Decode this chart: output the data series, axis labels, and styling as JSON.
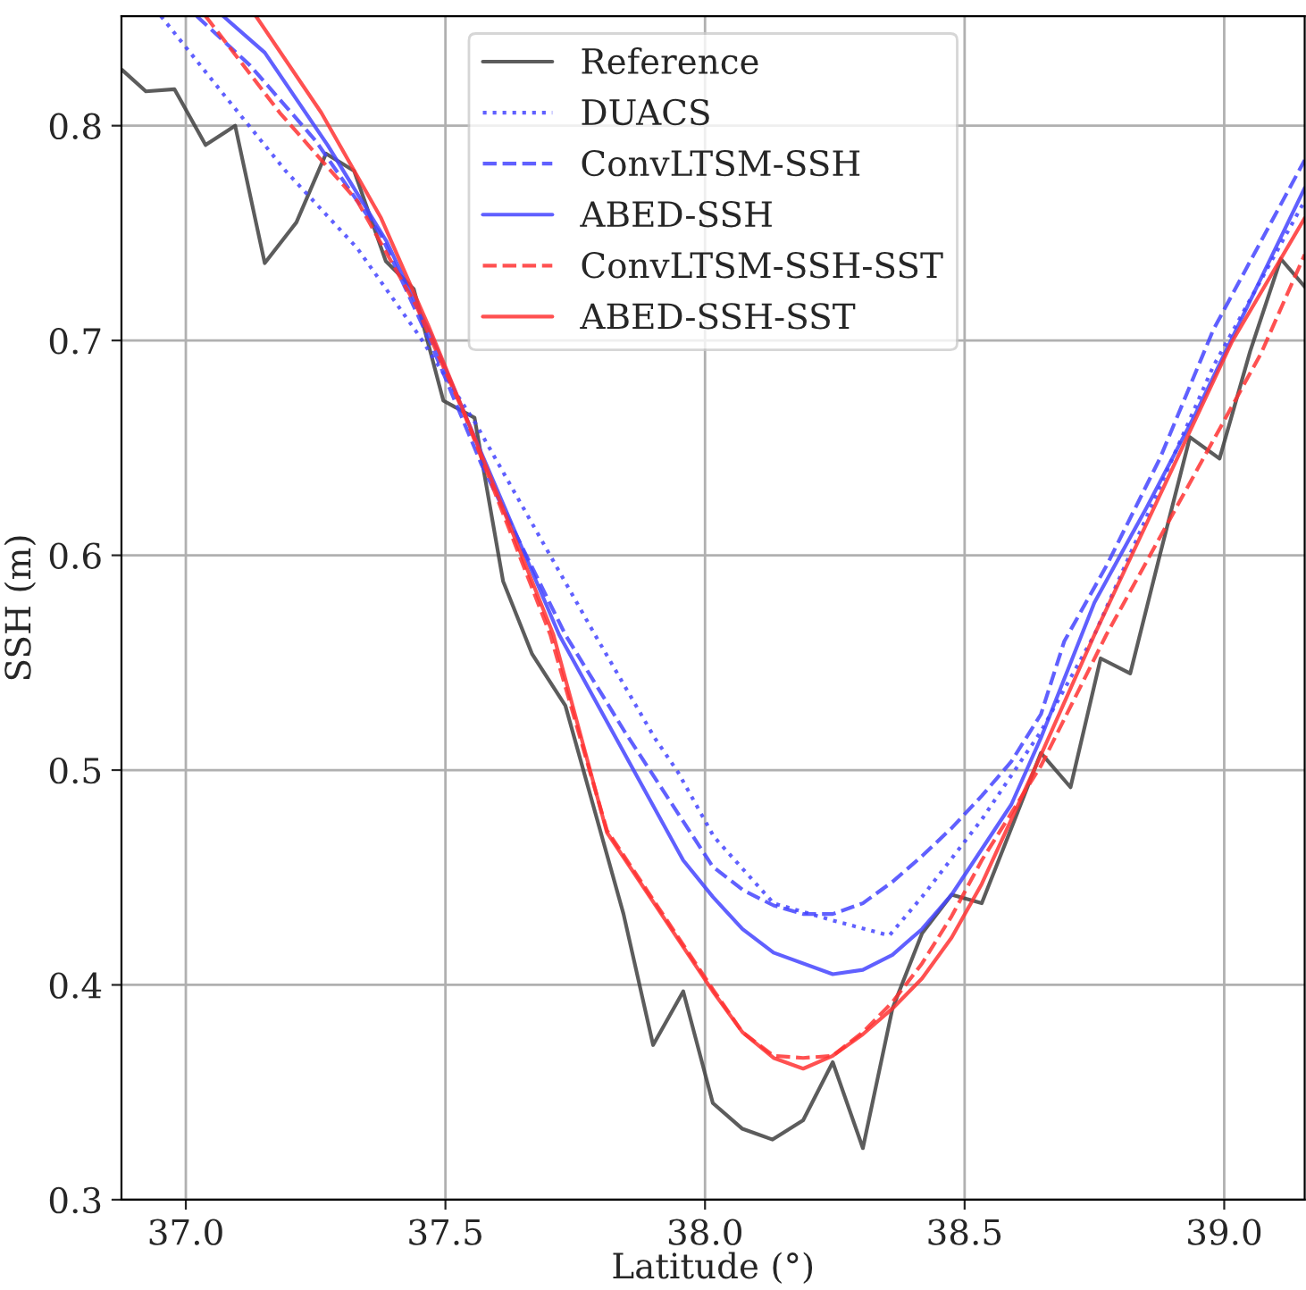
{
  "chart_data": {
    "type": "line",
    "xlabel": "Latitude (°)",
    "ylabel": "SSH (m)",
    "xlim": [
      36.876,
      39.155
    ],
    "ylim": [
      0.3,
      0.851
    ],
    "xticks": [
      {
        "value": 37,
        "label": "37.0"
      },
      {
        "value": 37.5,
        "label": "37.5"
      },
      {
        "value": 38,
        "label": "38.0"
      },
      {
        "value": 38.5,
        "label": "38.5"
      },
      {
        "value": 39,
        "label": "39.0"
      }
    ],
    "yticks": [
      {
        "value": 0.3,
        "label": "0.3"
      },
      {
        "value": 0.4,
        "label": "0.4"
      },
      {
        "value": 0.5,
        "label": "0.5"
      },
      {
        "value": 0.6,
        "label": "0.6"
      },
      {
        "value": 0.7,
        "label": "0.7"
      },
      {
        "value": 0.8,
        "label": "0.8"
      }
    ],
    "grid": true,
    "legend": "top",
    "marker": "none",
    "series": [
      {
        "name": "Reference",
        "color": "#404040",
        "line_style": "solid",
        "x": [
          36.877,
          36.923,
          36.978,
          37.038,
          37.095,
          37.152,
          37.213,
          37.27,
          37.324,
          37.385,
          37.439,
          37.496,
          37.556,
          37.611,
          37.667,
          37.731,
          37.843,
          37.9,
          37.958,
          38.015,
          38.072,
          38.13,
          38.189,
          38.246,
          38.304,
          38.361,
          38.418,
          38.475,
          38.533,
          38.59,
          38.647,
          38.704,
          38.762,
          38.819,
          38.876,
          38.934,
          38.991,
          39.05,
          39.109,
          39.155
        ],
        "values": [
          0.826,
          0.816,
          0.817,
          0.791,
          0.8,
          0.736,
          0.755,
          0.787,
          0.779,
          0.737,
          0.724,
          0.672,
          0.664,
          0.588,
          0.554,
          0.53,
          0.433,
          0.372,
          0.397,
          0.345,
          0.333,
          0.328,
          0.337,
          0.364,
          0.324,
          0.389,
          0.424,
          0.442,
          0.438,
          0.473,
          0.508,
          0.492,
          0.552,
          0.545,
          0.6,
          0.655,
          0.645,
          0.695,
          0.738,
          0.725
        ]
      },
      {
        "name": "DUACS",
        "color": "#4444ff",
        "line_style": "dotted",
        "x": [
          36.952,
          37.078,
          37.192,
          37.33,
          37.45,
          37.559,
          37.788,
          37.903,
          37.948,
          38.017,
          38.132,
          38.246,
          38.355,
          38.418,
          38.533,
          38.647,
          38.75,
          38.979,
          39.155
        ],
        "values": [
          0.851,
          0.813,
          0.779,
          0.743,
          0.702,
          0.661,
          0.563,
          0.515,
          0.499,
          0.469,
          0.438,
          0.43,
          0.423,
          0.441,
          0.477,
          0.518,
          0.563,
          0.688,
          0.765
        ]
      },
      {
        "name": "ConvLTSM-SSH",
        "color": "#4444ff",
        "line_style": "dashed",
        "x": [
          37.021,
          37.124,
          37.25,
          37.376,
          37.473,
          37.57,
          37.731,
          37.845,
          38.015,
          38.074,
          38.132,
          38.189,
          38.246,
          38.304,
          38.361,
          38.418,
          38.475,
          38.533,
          38.59,
          38.647,
          38.692,
          38.773,
          38.876,
          38.979,
          39.155
        ],
        "values": [
          0.851,
          0.828,
          0.793,
          0.749,
          0.698,
          0.642,
          0.563,
          0.518,
          0.455,
          0.444,
          0.437,
          0.433,
          0.433,
          0.438,
          0.448,
          0.46,
          0.473,
          0.488,
          0.504,
          0.526,
          0.56,
          0.595,
          0.645,
          0.705,
          0.784
        ]
      },
      {
        "name": "ABED-SSH",
        "color": "#4444ff",
        "line_style": "solid",
        "x": [
          37.072,
          37.152,
          37.273,
          37.387,
          37.473,
          37.565,
          37.719,
          37.958,
          38.015,
          38.072,
          38.132,
          38.246,
          38.304,
          38.361,
          38.418,
          38.475,
          38.59,
          38.647,
          38.75,
          38.85,
          38.945,
          39.155
        ],
        "values": [
          0.851,
          0.834,
          0.791,
          0.746,
          0.702,
          0.65,
          0.563,
          0.458,
          0.441,
          0.426,
          0.415,
          0.405,
          0.407,
          0.414,
          0.426,
          0.442,
          0.484,
          0.515,
          0.578,
          0.622,
          0.666,
          0.771
        ]
      },
      {
        "name": "ConvLTSM-SSH-SST",
        "color": "#ff3333",
        "line_style": "dashed",
        "x": [
          37.038,
          37.181,
          37.33,
          37.444,
          37.536,
          37.702,
          37.811,
          38.015,
          38.072,
          38.132,
          38.189,
          38.246,
          38.304,
          38.361,
          38.418,
          38.475,
          38.533,
          38.647,
          38.773,
          39.071,
          39.155
        ],
        "values": [
          0.851,
          0.806,
          0.765,
          0.716,
          0.666,
          0.563,
          0.472,
          0.398,
          0.378,
          0.367,
          0.366,
          0.367,
          0.378,
          0.392,
          0.41,
          0.432,
          0.458,
          0.502,
          0.563,
          0.694,
          0.74
        ]
      },
      {
        "name": "ABED-SSH-SST",
        "color": "#ff3333",
        "line_style": "solid",
        "x": [
          37.135,
          37.261,
          37.376,
          37.467,
          37.559,
          37.708,
          37.811,
          38.015,
          38.072,
          38.132,
          38.189,
          38.246,
          38.304,
          38.361,
          38.418,
          38.475,
          38.533,
          38.647,
          38.75,
          39.014,
          39.155
        ],
        "values": [
          0.851,
          0.806,
          0.757,
          0.707,
          0.653,
          0.563,
          0.471,
          0.397,
          0.378,
          0.366,
          0.361,
          0.367,
          0.377,
          0.389,
          0.403,
          0.422,
          0.447,
          0.507,
          0.563,
          0.699,
          0.757
        ]
      }
    ]
  }
}
